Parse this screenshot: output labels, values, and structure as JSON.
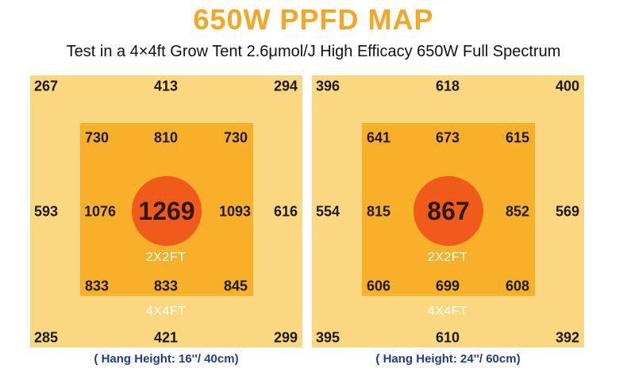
{
  "title": "650W PPFD MAP",
  "subtitle": "Test in a 4×4ft Grow Tent 2.6μmol/J High Efficacy 650W Full Spectrum",
  "colors": {
    "title": "#f5a623",
    "outer": "#fbd77f",
    "inner": "#f8b02a",
    "center": "#f05a1a",
    "label": "#ffffff",
    "hang": "#1f3a8f"
  },
  "maps": [
    {
      "outer": {
        "top_left": "267",
        "top_center": "413",
        "top_right": "294",
        "mid_left": "593",
        "mid_right": "616",
        "bottom_left": "285",
        "bottom_center": "421",
        "bottom_right": "299"
      },
      "inner": {
        "top_left": "730",
        "top_center": "810",
        "top_right": "730",
        "mid_left": "1076",
        "mid_right": "1093",
        "bottom_left": "833",
        "bottom_center": "833",
        "bottom_right": "845"
      },
      "center": "1269",
      "inner_label": "2X2FT",
      "outer_label": "4X4FT",
      "hang_height": "( Hang Height: 16''/ 40cm)"
    },
    {
      "outer": {
        "top_left": "396",
        "top_center": "618",
        "top_right": "400",
        "mid_left": "554",
        "mid_right": "569",
        "bottom_left": "395",
        "bottom_center": "610",
        "bottom_right": "392"
      },
      "inner": {
        "top_left": "641",
        "top_center": "673",
        "top_right": "615",
        "mid_left": "815",
        "mid_right": "852",
        "bottom_left": "606",
        "bottom_center": "699",
        "bottom_right": "608"
      },
      "center": "867",
      "inner_label": "2X2FT",
      "outer_label": "4X4FT",
      "hang_height": "( Hang Height: 24''/ 60cm)"
    }
  ]
}
